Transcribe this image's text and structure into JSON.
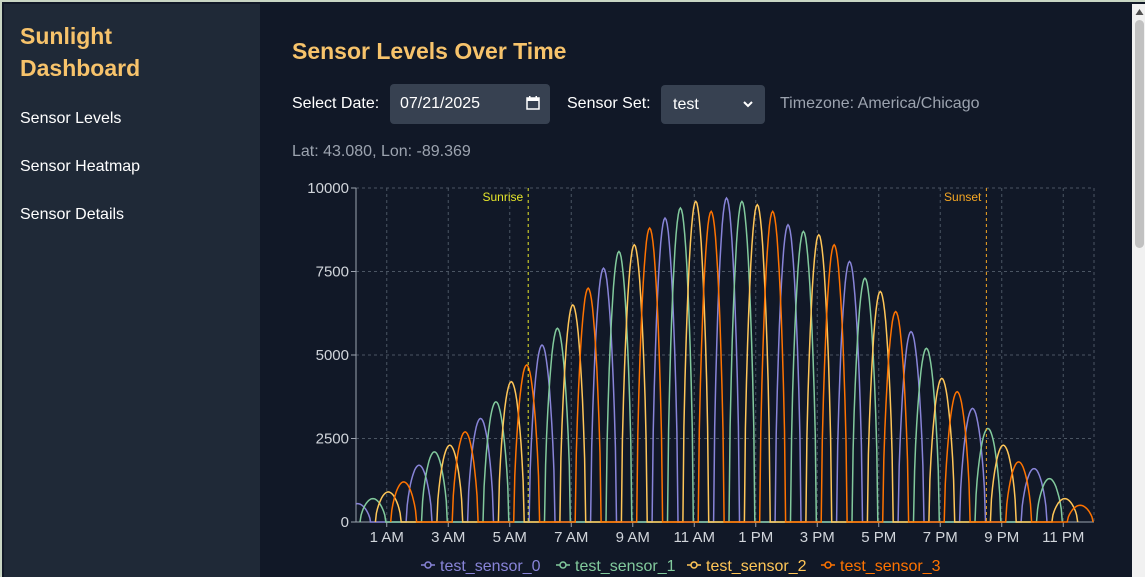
{
  "sidebar": {
    "title": "Sunlight Dashboard",
    "items": [
      {
        "label": "Sensor Levels"
      },
      {
        "label": "Sensor Heatmap"
      },
      {
        "label": "Sensor Details"
      }
    ]
  },
  "main": {
    "title": "Sensor Levels Over Time",
    "date_label": "Select Date:",
    "date_value": "07/21/2025",
    "sensor_set_label": "Sensor Set:",
    "sensor_set_value": "test",
    "timezone": "Timezone: America/Chicago",
    "latlon": "Lat: 43.080, Lon: -89.369"
  },
  "colors": {
    "accent": "#f7c36b",
    "sensor_0": "#8884d8",
    "sensor_1": "#82ca9d",
    "sensor_2": "#ffc658",
    "sensor_3": "#ff7300",
    "sunrise": "#e5e52a",
    "sunset": "#f5a623"
  },
  "chart_data": {
    "type": "line",
    "x_unit": "hour of day",
    "x_range": [
      0,
      24
    ],
    "ylim": [
      0,
      10000
    ],
    "yticks": [
      0,
      2500,
      5000,
      7500,
      10000
    ],
    "xticks": [
      {
        "x": 1,
        "label": "1 AM"
      },
      {
        "x": 3,
        "label": "3 AM"
      },
      {
        "x": 5,
        "label": "5 AM"
      },
      {
        "x": 7,
        "label": "7 AM"
      },
      {
        "x": 9,
        "label": "9 AM"
      },
      {
        "x": 11,
        "label": "11 AM"
      },
      {
        "x": 13,
        "label": "1 PM"
      },
      {
        "x": 15,
        "label": "3 PM"
      },
      {
        "x": 17,
        "label": "5 PM"
      },
      {
        "x": 19,
        "label": "7 PM"
      },
      {
        "x": 21,
        "label": "9 PM"
      },
      {
        "x": 23,
        "label": "11 PM"
      }
    ],
    "grid": true,
    "legend": "bottom-center",
    "reference_lines": [
      {
        "x": 5.6,
        "label": "Sunrise"
      },
      {
        "x": 20.5,
        "label": "Sunset"
      }
    ],
    "series": [
      {
        "name": "test_sensor_0",
        "peaks": [
          {
            "x": 0.05,
            "y": 550
          },
          {
            "x": 2.05,
            "y": 1700
          },
          {
            "x": 4.05,
            "y": 3100
          },
          {
            "x": 6.05,
            "y": 5300
          },
          {
            "x": 8.05,
            "y": 7600
          },
          {
            "x": 10.05,
            "y": 9100
          },
          {
            "x": 12.05,
            "y": 9700
          },
          {
            "x": 14.05,
            "y": 8900
          },
          {
            "x": 16.05,
            "y": 7800
          },
          {
            "x": 18.05,
            "y": 5700
          },
          {
            "x": 20.05,
            "y": 3400
          },
          {
            "x": 22.05,
            "y": 1600
          }
        ]
      },
      {
        "name": "test_sensor_1",
        "peaks": [
          {
            "x": 0.55,
            "y": 700
          },
          {
            "x": 2.55,
            "y": 2100
          },
          {
            "x": 4.55,
            "y": 3600
          },
          {
            "x": 6.55,
            "y": 5800
          },
          {
            "x": 8.55,
            "y": 8100
          },
          {
            "x": 10.55,
            "y": 9400
          },
          {
            "x": 12.55,
            "y": 9600
          },
          {
            "x": 14.55,
            "y": 8700
          },
          {
            "x": 16.55,
            "y": 7300
          },
          {
            "x": 18.55,
            "y": 5200
          },
          {
            "x": 20.55,
            "y": 2800
          },
          {
            "x": 22.55,
            "y": 1300
          }
        ]
      },
      {
        "name": "test_sensor_2",
        "peaks": [
          {
            "x": 1.05,
            "y": 900
          },
          {
            "x": 3.05,
            "y": 2300
          },
          {
            "x": 5.05,
            "y": 4200
          },
          {
            "x": 7.05,
            "y": 6500
          },
          {
            "x": 9.05,
            "y": 8300
          },
          {
            "x": 11.05,
            "y": 9600
          },
          {
            "x": 13.05,
            "y": 9500
          },
          {
            "x": 15.05,
            "y": 8600
          },
          {
            "x": 17.05,
            "y": 6900
          },
          {
            "x": 19.05,
            "y": 4300
          },
          {
            "x": 21.05,
            "y": 2300
          },
          {
            "x": 23.05,
            "y": 700
          }
        ]
      },
      {
        "name": "test_sensor_3",
        "peaks": [
          {
            "x": 1.55,
            "y": 1200
          },
          {
            "x": 3.55,
            "y": 2700
          },
          {
            "x": 5.55,
            "y": 4700
          },
          {
            "x": 7.55,
            "y": 7000
          },
          {
            "x": 9.55,
            "y": 8800
          },
          {
            "x": 11.55,
            "y": 9300
          },
          {
            "x": 13.55,
            "y": 9300
          },
          {
            "x": 15.55,
            "y": 8300
          },
          {
            "x": 17.55,
            "y": 6300
          },
          {
            "x": 19.55,
            "y": 3900
          },
          {
            "x": 21.55,
            "y": 1800
          },
          {
            "x": 23.55,
            "y": 500
          }
        ]
      }
    ]
  }
}
